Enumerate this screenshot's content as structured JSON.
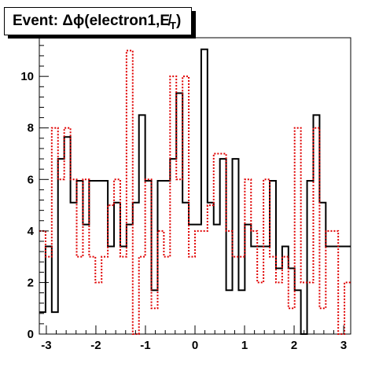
{
  "chart_data": {
    "type": "histogram",
    "title": "Event: Δϕ(electron1,E̸T)",
    "title_main": "Event: Δϕ(electron1,E̸",
    "title_sub": "T",
    "title_close": ")",
    "xlim": [
      -3.1416,
      3.1416
    ],
    "ylim": [
      0,
      11.5
    ],
    "xticks": [
      -3,
      -2,
      -1,
      0,
      1,
      2,
      3
    ],
    "yticks": [
      0,
      2,
      4,
      6,
      8,
      10
    ],
    "bins": 50,
    "series": [
      {
        "style": "solid",
        "color": "#000000",
        "values": [
          0.85,
          3.4,
          0.85,
          6.8,
          7.65,
          5.1,
          5.95,
          4.25,
          5.95,
          5.95,
          5.95,
          3.4,
          5.1,
          3.4,
          4.25,
          5.1,
          8.5,
          5.95,
          1.7,
          5.95,
          5.95,
          6.8,
          9.35,
          5.1,
          4.25,
          4.25,
          11.05,
          5.1,
          4.25,
          6.8,
          1.7,
          6.8,
          1.7,
          4.25,
          3.4,
          3.4,
          3.4,
          5.95,
          2.55,
          3.4,
          2.55,
          1.7,
          0.0,
          5.95,
          8.5,
          5.1,
          3.4,
          3.4,
          3.4,
          3.4
        ]
      },
      {
        "style": "dotted",
        "color": "#e00000",
        "values": [
          4.0,
          3.0,
          8.0,
          6.0,
          8.0,
          6.0,
          3.0,
          6.0,
          3.0,
          2.0,
          3.0,
          5.0,
          6.0,
          3.0,
          11.0,
          0.0,
          3.0,
          6.0,
          1.0,
          4.0,
          3.0,
          10.0,
          6.0,
          10.0,
          3.0,
          4.0,
          4.0,
          5.0,
          7.0,
          7.0,
          4.0,
          3.0,
          3.0,
          6.0,
          4.0,
          2.0,
          6.0,
          3.0,
          2.0,
          3.0,
          1.0,
          8.0,
          2.0,
          2.0,
          8.0,
          1.0,
          4.0,
          4.0,
          0.0,
          2.0
        ]
      }
    ]
  }
}
